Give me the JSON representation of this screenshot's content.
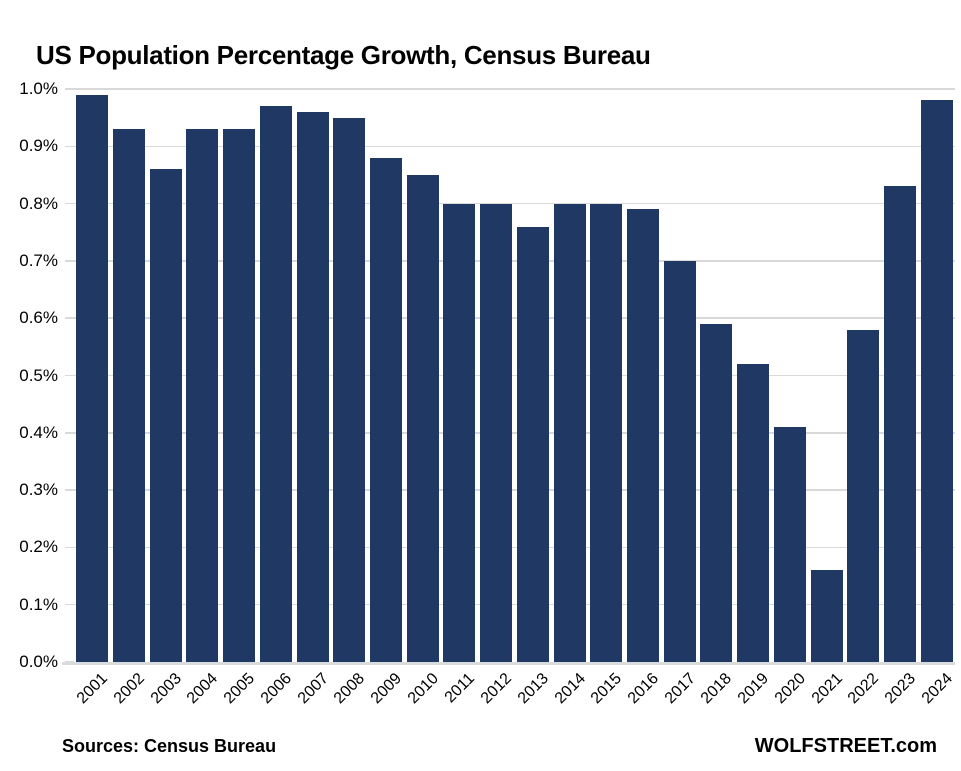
{
  "header": {
    "title": "US Population Percentage Growth, Census Bureau"
  },
  "footer": {
    "sources": "Sources: Census Bureau",
    "brand": "WOLFSTREET.com"
  },
  "chart_data": {
    "type": "bar",
    "title": "US Population Percentage Growth, Census Bureau",
    "xlabel": "",
    "ylabel": "",
    "unit": "%",
    "categories": [
      "2001",
      "2002",
      "2003",
      "2004",
      "2005",
      "2006",
      "2007",
      "2008",
      "2009",
      "2010",
      "2011",
      "2012",
      "2013",
      "2014",
      "2015",
      "2016",
      "2017",
      "2018",
      "2019",
      "2020",
      "2021",
      "2022",
      "2023",
      "2024"
    ],
    "values": [
      0.99,
      0.93,
      0.86,
      0.93,
      0.93,
      0.97,
      0.96,
      0.95,
      0.88,
      0.85,
      0.8,
      0.8,
      0.76,
      0.8,
      0.8,
      0.79,
      0.7,
      0.59,
      0.52,
      0.41,
      0.16,
      0.58,
      0.83,
      0.98
    ],
    "ylim": [
      0.0,
      1.0
    ],
    "ytick_step": 0.1,
    "ytick_labels": [
      "0.0%",
      "0.1%",
      "0.2%",
      "0.3%",
      "0.4%",
      "0.5%",
      "0.6%",
      "0.7%",
      "0.8%",
      "0.9%",
      "1.0%"
    ],
    "grid": true,
    "legend": "none",
    "colors": {
      "bar": "#1f3864",
      "gridline": "#d9d9d9",
      "axis_line": "#d9dcdf",
      "text": "#000000",
      "background": "#ffffff"
    }
  }
}
